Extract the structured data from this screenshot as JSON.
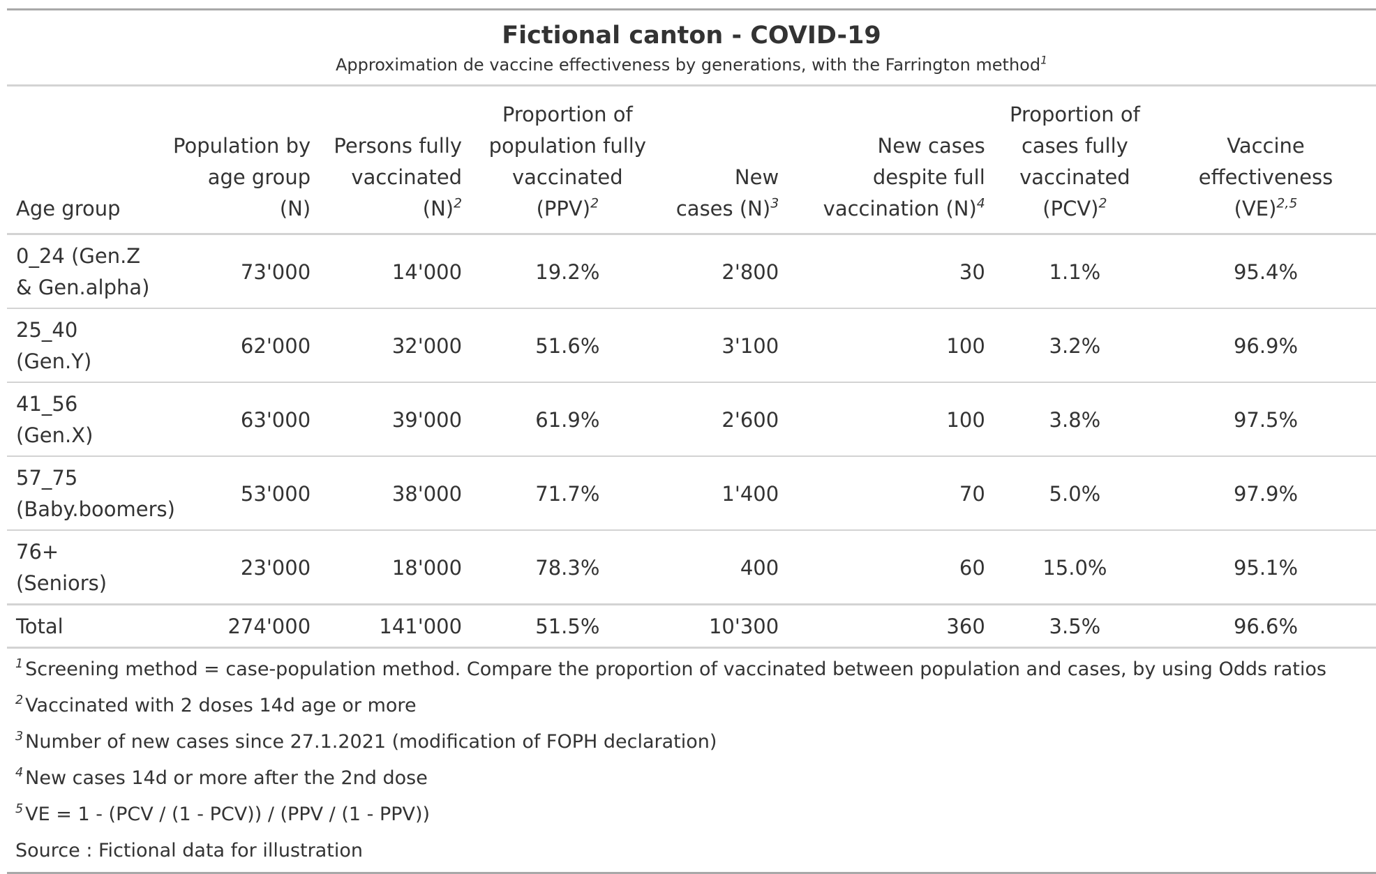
{
  "title": "Fictional canton - COVID-19",
  "subtitle": "Approximation de vaccine effectiveness by generations, with the Farrington method",
  "subtitle_footnote": "1",
  "columns": [
    {
      "label": "Age group",
      "sup": ""
    },
    {
      "label": "Population by age group (N)",
      "sup": ""
    },
    {
      "label": "Persons fully vaccinated (N)",
      "sup": "2"
    },
    {
      "label": "Proportion of population fully vaccinated (PPV)",
      "sup": "2"
    },
    {
      "label": "New cases (N)",
      "sup": "3"
    },
    {
      "label": "New cases despite full vaccination (N)",
      "sup": "4"
    },
    {
      "label": "Proportion of cases fully vaccinated (PCV)",
      "sup": "2"
    },
    {
      "label": "Vaccine effectiveness (VE)",
      "sup": "2,5"
    }
  ],
  "rows": [
    {
      "age_group": "0_24 (Gen.Z & Gen.alpha)",
      "population": "73'000",
      "vaccinated": "14'000",
      "ppv": "19.2%",
      "new_cases": "2'800",
      "cases_vaccinated": "30",
      "pcv": "1.1%",
      "ve": "95.4%"
    },
    {
      "age_group": "25_40 (Gen.Y)",
      "population": "62'000",
      "vaccinated": "32'000",
      "ppv": "51.6%",
      "new_cases": "3'100",
      "cases_vaccinated": "100",
      "pcv": "3.2%",
      "ve": "96.9%"
    },
    {
      "age_group": "41_56 (Gen.X)",
      "population": "63'000",
      "vaccinated": "39'000",
      "ppv": "61.9%",
      "new_cases": "2'600",
      "cases_vaccinated": "100",
      "pcv": "3.8%",
      "ve": "97.5%"
    },
    {
      "age_group": "57_75 (Baby.boomers)",
      "population": "53'000",
      "vaccinated": "38'000",
      "ppv": "71.7%",
      "new_cases": "1'400",
      "cases_vaccinated": "70",
      "pcv": "5.0%",
      "ve": "97.9%"
    },
    {
      "age_group": "76+ (Seniors)",
      "population": "23'000",
      "vaccinated": "18'000",
      "ppv": "78.3%",
      "new_cases": "400",
      "cases_vaccinated": "60",
      "pcv": "15.0%",
      "ve": "95.1%"
    }
  ],
  "total": {
    "age_group": "Total",
    "population": "274'000",
    "vaccinated": "141'000",
    "ppv": "51.5%",
    "new_cases": "10'300",
    "cases_vaccinated": "360",
    "pcv": "3.5%",
    "ve": "96.6%"
  },
  "footnotes": [
    {
      "mark": "1",
      "text": "Screening method = case-population method. Compare the proportion of vaccinated between population and cases, by using Odds ratios"
    },
    {
      "mark": "2",
      "text": "Vaccinated with 2 doses 14d age or more"
    },
    {
      "mark": "3",
      "text": "Number of new cases since 27.1.2021 (modification of FOPH declaration)"
    },
    {
      "mark": "4",
      "text": "New cases 14d or more after the 2nd dose"
    },
    {
      "mark": "5",
      "text": "VE = 1 - (PCV / (1 - PCV)) / (PPV / (1 - PPV))"
    }
  ],
  "source": "Source : Fictional data for illustration"
}
